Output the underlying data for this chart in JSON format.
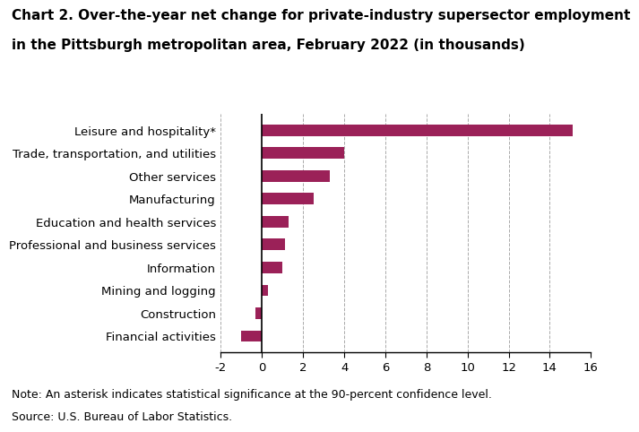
{
  "title_line1": "Chart 2. Over-the-year net change for private-industry supersector employment",
  "title_line2": "in the Pittsburgh metropolitan area, February 2022 (in thousands)",
  "categories": [
    "Financial activities",
    "Construction",
    "Mining and logging",
    "Information",
    "Professional and business services",
    "Education and health services",
    "Manufacturing",
    "Other services",
    "Trade, transportation, and utilities",
    "Leisure and hospitality*"
  ],
  "values": [
    -1.0,
    -0.3,
    0.3,
    1.0,
    1.1,
    1.3,
    2.5,
    3.3,
    4.0,
    15.1
  ],
  "bar_color": "#9B2158",
  "xlim": [
    -2,
    16
  ],
  "xticks": [
    -2,
    0,
    2,
    4,
    6,
    8,
    10,
    12,
    14,
    16
  ],
  "note": "Note: An asterisk indicates statistical significance at the 90-percent confidence level.",
  "source": "Source: U.S. Bureau of Labor Statistics.",
  "title_fontsize": 11.0,
  "label_fontsize": 9.5,
  "tick_fontsize": 9.5,
  "note_fontsize": 9.0,
  "bar_height": 0.5,
  "background_color": "#ffffff"
}
